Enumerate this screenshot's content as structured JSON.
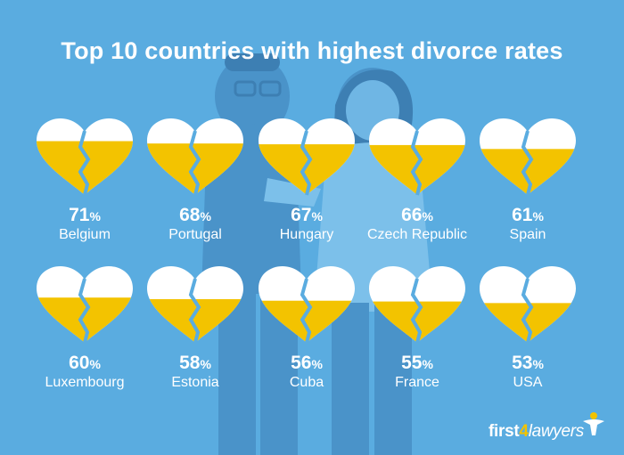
{
  "title": "Top 10 countries with highest divorce rates",
  "colors": {
    "background": "#5aace0",
    "heart_fill": "#f3c300",
    "heart_empty": "#ffffff",
    "text": "#ffffff"
  },
  "chart_data": {
    "type": "bar",
    "title": "Top 10 countries with highest divorce rates",
    "unit": "%",
    "categories": [
      "Belgium",
      "Portugal",
      "Hungary",
      "Czech Republic",
      "Spain",
      "Luxembourg",
      "Estonia",
      "Cuba",
      "France",
      "USA"
    ],
    "values": [
      71,
      68,
      67,
      66,
      61,
      60,
      58,
      56,
      55,
      53
    ],
    "ylim": [
      0,
      100
    ]
  },
  "logo": {
    "part1": "first",
    "part2": "4",
    "part3": "lawyers",
    "icon": "person-icon"
  }
}
